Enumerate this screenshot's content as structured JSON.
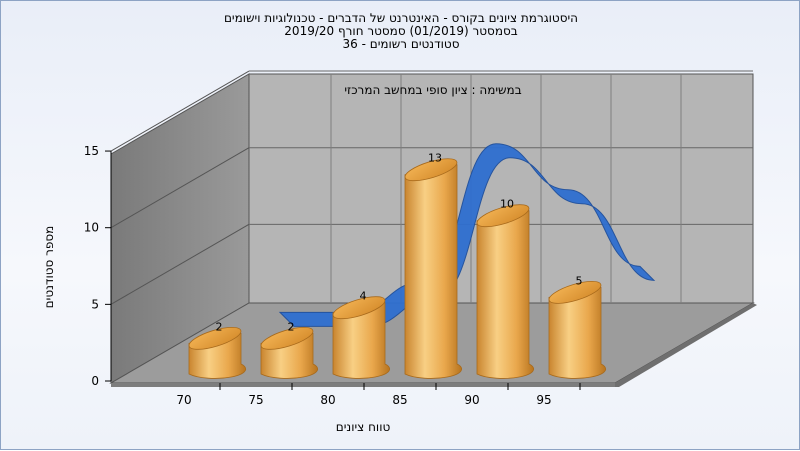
{
  "titles": {
    "line1": "היסטוגרמת ציונים בקורס - האינטרנט של הדברים - טכנולוגיות וישומים",
    "line2": "בסמסטר  (01/2019)  סמסטר חורף  2019/20",
    "line3": "סטודנטים רשומים - 36"
  },
  "chart_data": {
    "type": "bar",
    "subtitle": "במשימה : ציון סופי במחשב המרכזי",
    "xlabel": "טווח ציונים",
    "ylabel": "מספר סטודנטים",
    "x_ticks": [
      "70",
      "75",
      "80",
      "85",
      "90",
      "95"
    ],
    "y_ticks": [
      0,
      5,
      10,
      15
    ],
    "ylim": [
      0,
      15
    ],
    "categories": [
      "70",
      "75",
      "80",
      "85",
      "90",
      "95"
    ],
    "values": [
      2,
      2,
      4,
      13,
      10,
      5
    ],
    "trend_line": true,
    "grid": true,
    "colors": {
      "bar": "#e8a94f",
      "trend": "#2f6fd0",
      "back_wall": "#b4b4b4",
      "side_wall": "#8a8a8a",
      "floor": "#9a9a9a"
    }
  }
}
